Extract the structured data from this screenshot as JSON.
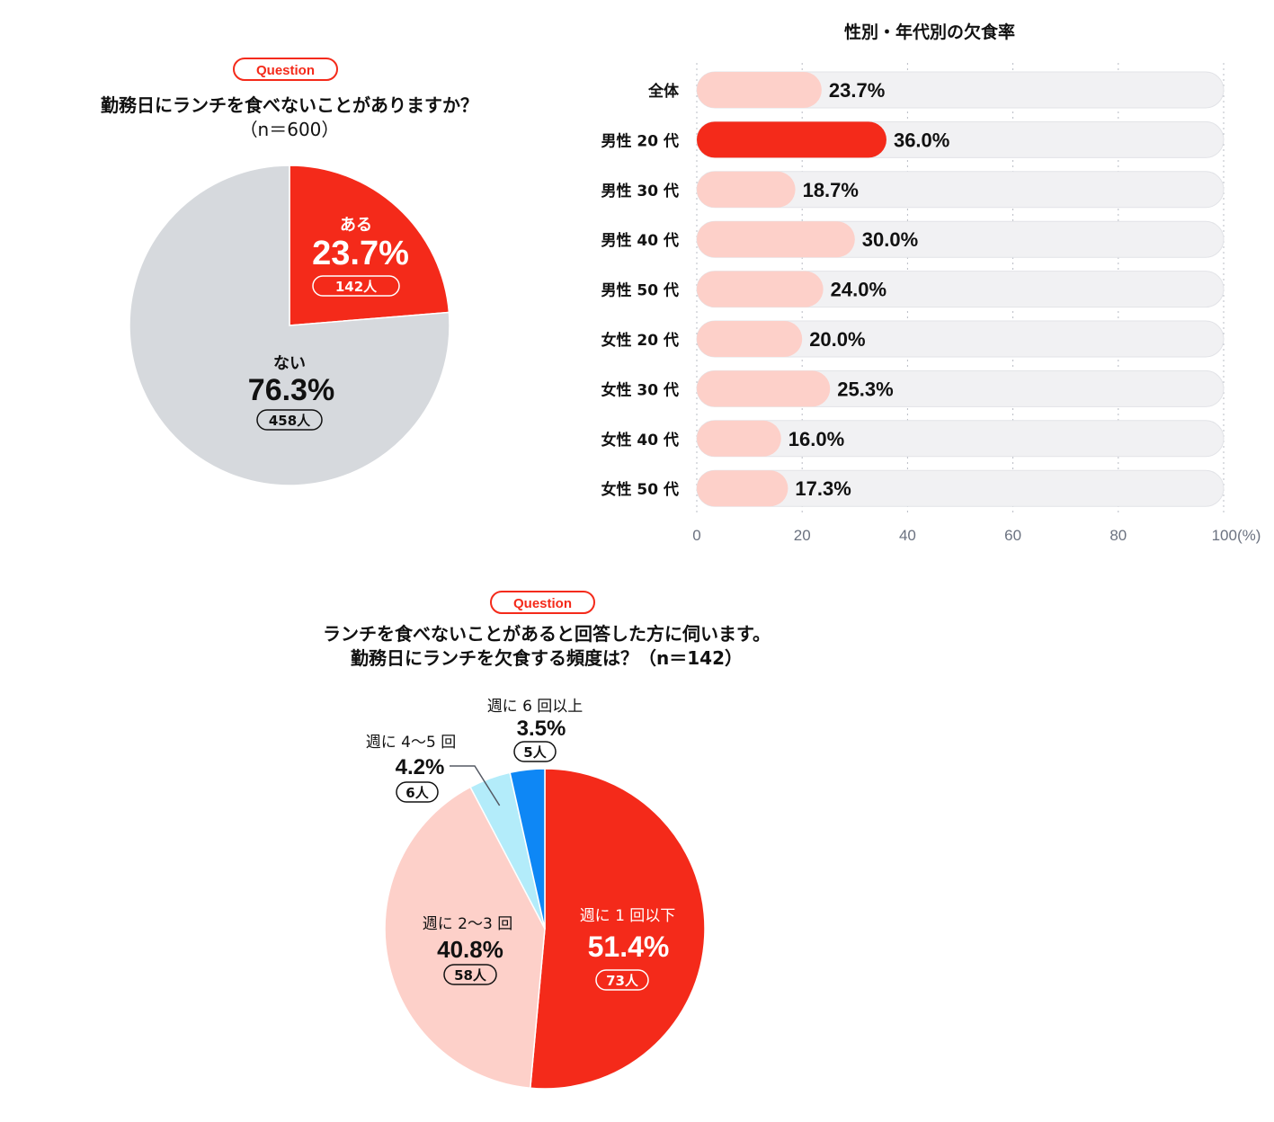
{
  "q1": {
    "badge": "Question",
    "title": "勤務日にランチを食べないことがありますか？",
    "subtitle": "（n＝600）"
  },
  "q2": {
    "badge": "Question",
    "title_line1": "ランチを食べないことがあると回答した方に伺います。",
    "title_line2": "勤務日にランチを欠食する頻度は？（n＝142）"
  },
  "chart_data": [
    {
      "type": "pie",
      "slices": [
        {
          "label": "ある",
          "value": 23.7,
          "display": "23.7%",
          "count": "142人",
          "color": "#f42a1a"
        },
        {
          "label": "ない",
          "value": 76.3,
          "display": "76.3%",
          "count": "458人",
          "color": "#d6d9dd"
        }
      ]
    },
    {
      "type": "bar",
      "orientation": "horizontal",
      "title": "性別・年代別の欠食率",
      "categories": [
        "全体",
        "男性 20 代",
        "男性 30 代",
        "男性 40 代",
        "男性 50 代",
        "女性 20 代",
        "女性 30 代",
        "女性 40 代",
        "女性 50 代"
      ],
      "values": [
        23.7,
        36.0,
        18.7,
        30.0,
        24.0,
        20.0,
        25.3,
        16.0,
        17.3
      ],
      "value_labels": [
        "23.7%",
        "36.0%",
        "18.7%",
        "30.0%",
        "24.0%",
        "20.0%",
        "25.3%",
        "16.0%",
        "17.3%"
      ],
      "highlight_index": 1,
      "xlim": [
        0,
        100
      ],
      "xticks": [
        "0",
        "20",
        "40",
        "60",
        "80",
        "100(%)"
      ],
      "grid": true,
      "colors": {
        "bar": "#fdd0c9",
        "highlight": "#f42a1a",
        "track": "#f1f1f3"
      }
    },
    {
      "type": "pie",
      "slices": [
        {
          "label": "週に 1 回以下",
          "value": 51.4,
          "display": "51.4%",
          "count": "73人",
          "color": "#f42a1a"
        },
        {
          "label": "週に 2〜3 回",
          "value": 40.8,
          "display": "40.8%",
          "count": "58人",
          "color": "#fdd0c9"
        },
        {
          "label": "週に 4〜5 回",
          "value": 4.2,
          "display": "4.2%",
          "count": "6人",
          "color": "#b3ecfa"
        },
        {
          "label": "週に 6 回以上",
          "value": 3.5,
          "display": "3.5%",
          "count": "5人",
          "color": "#0e87f5"
        }
      ]
    }
  ]
}
